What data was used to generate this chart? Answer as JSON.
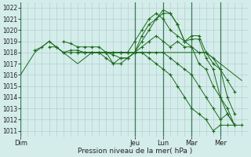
{
  "title": "Pression niveau de la mer( hPa )",
  "bg_color": "#d4ecea",
  "grid_color": "#aacccc",
  "line_color": "#1a6b1a",
  "ylim": [
    1011,
    1022
  ],
  "yticks": [
    1011,
    1012,
    1013,
    1014,
    1015,
    1016,
    1017,
    1018,
    1019,
    1020,
    1021,
    1022
  ],
  "day_positions": [
    0,
    96,
    120,
    144,
    168
  ],
  "day_labels": [
    "Dim",
    "Jeu",
    "Lun",
    "Mar",
    "Mer"
  ],
  "xlim": [
    0,
    192
  ],
  "series": [
    {
      "x": [
        0,
        6,
        12,
        18,
        24,
        30,
        36,
        42,
        48,
        54,
        60,
        66,
        72,
        78,
        84,
        90,
        96,
        102,
        108,
        114,
        120,
        126,
        132,
        138,
        144,
        150,
        156,
        162,
        168,
        174,
        180,
        186
      ],
      "y": [
        1016,
        1017,
        1018,
        1018.5,
        1019,
        1018.5,
        1018,
        1017.5,
        1017,
        1017.5,
        1018,
        1018,
        1018,
        1018,
        1018,
        1018,
        1018,
        1018,
        1018,
        1018,
        1018,
        1018,
        1018,
        1018,
        1018,
        1018,
        1018,
        1017.5,
        1017,
        1016.5,
        1016,
        1015.5
      ],
      "marker": false
    },
    {
      "x": [
        12,
        18,
        24,
        30,
        36,
        42,
        48,
        54,
        60,
        66,
        72,
        78,
        84,
        90,
        96,
        102,
        108,
        114,
        120,
        126,
        132,
        138,
        144,
        150,
        156,
        162,
        168,
        174,
        180,
        186
      ],
      "y": [
        1018.2,
        1018.5,
        1019,
        1018.5,
        1018,
        1018,
        1018,
        1018,
        1018,
        1018,
        1018,
        1018,
        1018,
        1018,
        1018,
        1018,
        1018,
        1018,
        1018,
        1017.5,
        1017,
        1016.5,
        1016,
        1015,
        1014,
        1013,
        1012,
        1012.5,
        1011.5,
        1011.5
      ],
      "marker": true
    },
    {
      "x": [
        24,
        30,
        36,
        42,
        48,
        54,
        60,
        66,
        72,
        78,
        84,
        90,
        96,
        102,
        108,
        114,
        120,
        126,
        132,
        138,
        144,
        150,
        156,
        162,
        168,
        174,
        180
      ],
      "y": [
        1018.5,
        1018.5,
        1018,
        1018.2,
        1018.2,
        1018,
        1018,
        1018,
        1018,
        1018,
        1018,
        1018,
        1018,
        1018,
        1017.5,
        1017,
        1016.5,
        1016,
        1015,
        1014,
        1013,
        1012.5,
        1012,
        1011,
        1011.5,
        1011.5,
        1011.5
      ],
      "marker": true
    },
    {
      "x": [
        36,
        42,
        48,
        54,
        60,
        66,
        72,
        78,
        84,
        90,
        96,
        102,
        108,
        114,
        120,
        126,
        132,
        138,
        144,
        150,
        156,
        162,
        168,
        174,
        180
      ],
      "y": [
        1019,
        1018.8,
        1018.5,
        1018.5,
        1018.5,
        1018.5,
        1018,
        1017.8,
        1017.5,
        1017.5,
        1018,
        1018.5,
        1019,
        1019.5,
        1019,
        1018.5,
        1019,
        1018.5,
        1018.5,
        1017,
        1016.5,
        1015,
        1014,
        1013,
        1011.5
      ],
      "marker": true
    },
    {
      "x": [
        48,
        54,
        60,
        66,
        72,
        78,
        84,
        90,
        96,
        102,
        108,
        114,
        120,
        126,
        132,
        138,
        144,
        150,
        156,
        162,
        168,
        174,
        180
      ],
      "y": [
        1018,
        1018,
        1018,
        1018,
        1018,
        1018,
        1018,
        1018,
        1019,
        1020,
        1021,
        1021.5,
        1021,
        1020,
        1019.5,
        1019,
        1019.2,
        1019.2,
        1017.5,
        1016.5,
        1014,
        1012.5,
        1011.5
      ],
      "marker": true
    },
    {
      "x": [
        60,
        66,
        72,
        78,
        84,
        90,
        96,
        102,
        108,
        114,
        120,
        126,
        132,
        138,
        144,
        150,
        156,
        162,
        168,
        174,
        180
      ],
      "y": [
        1018,
        1018,
        1017.5,
        1017,
        1017,
        1017.5,
        1018,
        1019.5,
        1020.5,
        1021,
        1021.8,
        1021.5,
        1020.5,
        1019,
        1019.5,
        1019.5,
        1018,
        1017,
        1016.5,
        1014,
        1012.5
      ],
      "marker": true
    },
    {
      "x": [
        72,
        78,
        84,
        90,
        96,
        102,
        108,
        114,
        120,
        126,
        132,
        138,
        144,
        150,
        156,
        162,
        168,
        174,
        180
      ],
      "y": [
        1018,
        1017,
        1017.5,
        1017.5,
        1018,
        1019,
        1020,
        1021,
        1021.5,
        1021.5,
        1020.5,
        1019,
        1018.5,
        1018,
        1018,
        1017.5,
        1016.5,
        1015.5,
        1014.5
      ],
      "marker": true
    }
  ]
}
